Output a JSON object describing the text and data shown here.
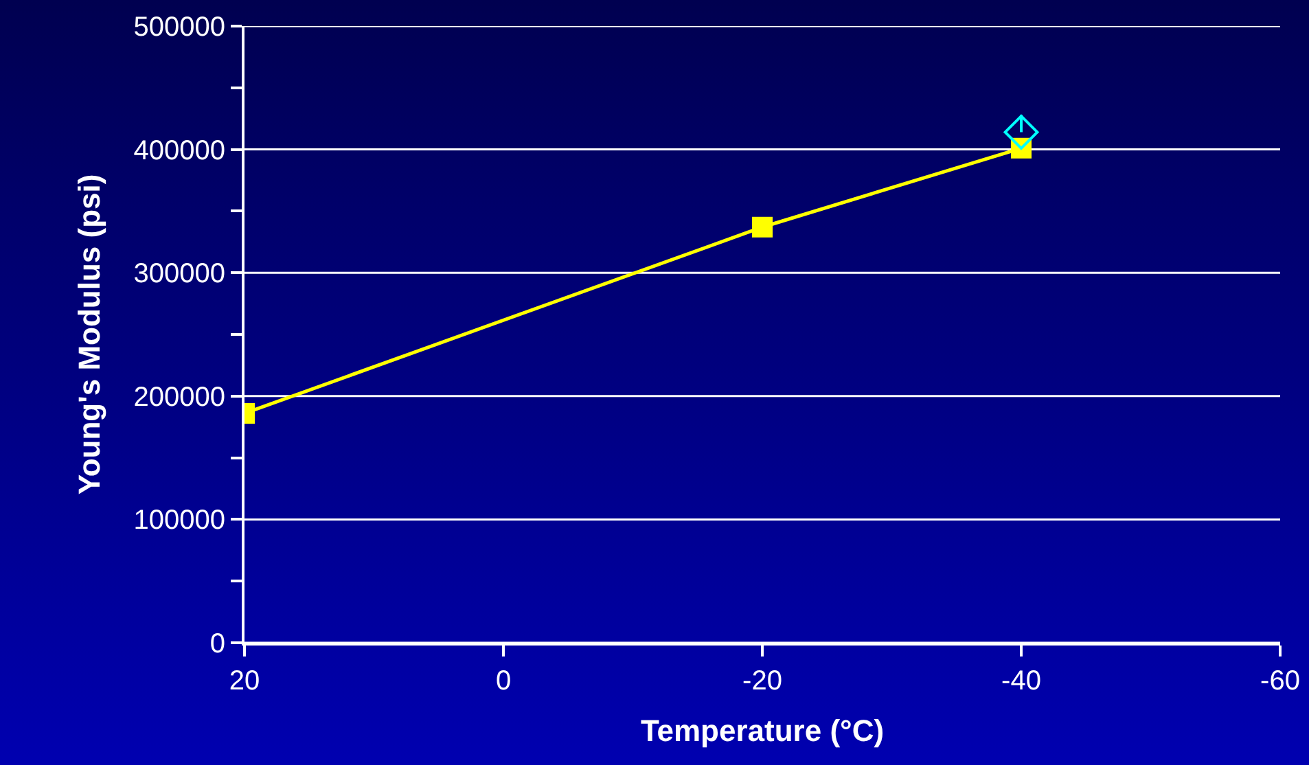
{
  "chart_data": {
    "type": "line",
    "xlabel": "Temperature (°C)",
    "ylabel": "Young's Modulus (psi)",
    "xlim": [
      20,
      -60
    ],
    "xticks": [
      20,
      0,
      -20,
      -40,
      -60
    ],
    "ylim": [
      0,
      500000
    ],
    "yticks": [
      0,
      {
        "value": 50000,
        "label": null
      },
      100000,
      {
        "value": 150000,
        "label": null
      },
      200000,
      {
        "value": 250000,
        "label": null
      },
      300000,
      {
        "value": 350000,
        "label": null
      },
      400000,
      {
        "value": 450000,
        "label": null
      },
      500000
    ],
    "grid": "y",
    "series": [
      {
        "color": "#ffff00",
        "marker": "square",
        "line_style": "solid",
        "x": [
          20,
          -20,
          -40
        ],
        "values": [
          186000,
          337000,
          401000
        ]
      },
      {
        "type": "scatter",
        "color": "#00ffff",
        "marker": "diamond",
        "x": [
          -40
        ],
        "values": [
          414000
        ],
        "errors": [
          [
            414000,
            428000
          ]
        ]
      }
    ]
  }
}
